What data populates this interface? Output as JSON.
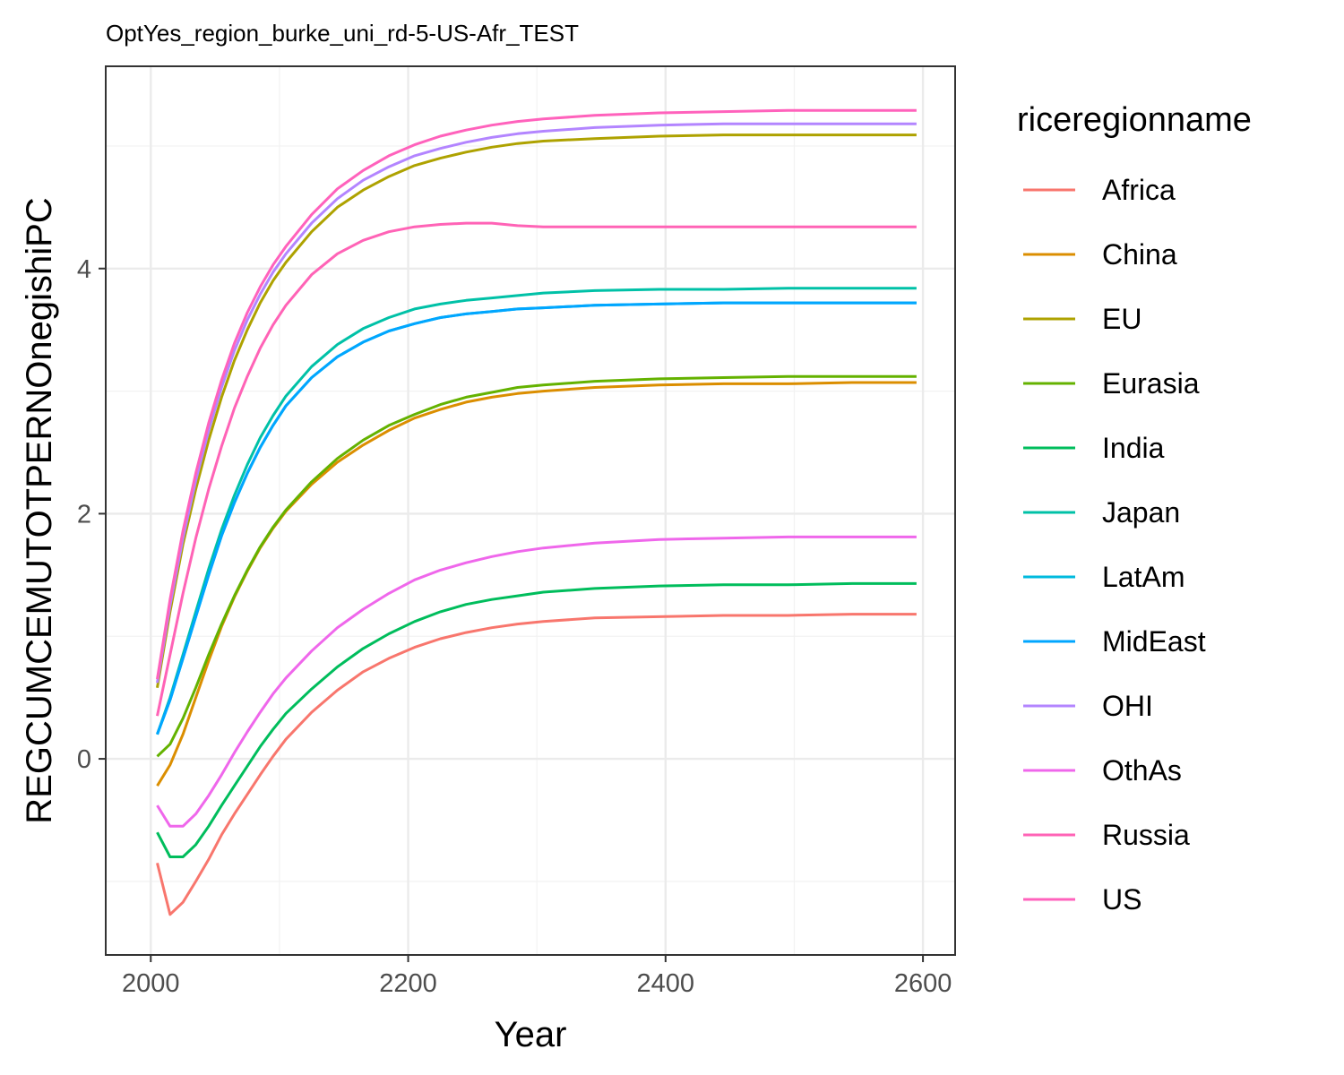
{
  "chart_data": {
    "type": "line",
    "title": "OptYes_region_burke_uni_rd-5-US-Afr_TEST",
    "xlabel": "Year",
    "ylabel": "REGCUMCEMUTOTPERNOnegishiPC",
    "xlim": [
      1965,
      2625
    ],
    "ylim": [
      -1.6,
      5.65
    ],
    "x_ticks": [
      2000,
      2200,
      2400,
      2600
    ],
    "x_tick_labels": [
      "2000",
      "2200",
      "2400",
      "2600"
    ],
    "y_ticks": [
      0,
      2,
      4
    ],
    "y_tick_labels": [
      "0",
      "2",
      "4"
    ],
    "grid": true,
    "legend_title": "riceregionname",
    "legend_position": "right",
    "x": [
      2005,
      2015,
      2025,
      2035,
      2045,
      2055,
      2065,
      2075,
      2085,
      2095,
      2105,
      2125,
      2145,
      2165,
      2185,
      2205,
      2225,
      2245,
      2265,
      2285,
      2305,
      2345,
      2395,
      2445,
      2495,
      2545,
      2595
    ],
    "series": [
      {
        "name": "Africa",
        "color": "#F8766D",
        "values": [
          -0.85,
          -1.27,
          -1.17,
          -1.0,
          -0.82,
          -0.62,
          -0.45,
          -0.29,
          -0.13,
          0.02,
          0.16,
          0.38,
          0.56,
          0.71,
          0.82,
          0.91,
          0.98,
          1.03,
          1.07,
          1.1,
          1.12,
          1.15,
          1.16,
          1.17,
          1.17,
          1.18,
          1.18
        ]
      },
      {
        "name": "China",
        "color": "#DB8E00",
        "values": [
          -0.22,
          -0.05,
          0.2,
          0.5,
          0.8,
          1.08,
          1.32,
          1.53,
          1.72,
          1.88,
          2.02,
          2.24,
          2.42,
          2.56,
          2.68,
          2.78,
          2.85,
          2.91,
          2.95,
          2.98,
          3.0,
          3.03,
          3.05,
          3.06,
          3.06,
          3.07,
          3.07
        ]
      },
      {
        "name": "EU",
        "color": "#AEA200",
        "values": [
          0.58,
          1.2,
          1.75,
          2.2,
          2.6,
          2.95,
          3.25,
          3.5,
          3.72,
          3.9,
          4.05,
          4.3,
          4.5,
          4.64,
          4.75,
          4.84,
          4.9,
          4.95,
          4.99,
          5.02,
          5.04,
          5.06,
          5.08,
          5.09,
          5.09,
          5.09,
          5.09
        ]
      },
      {
        "name": "Eurasia",
        "color": "#64B200",
        "values": [
          0.02,
          0.12,
          0.33,
          0.58,
          0.85,
          1.1,
          1.33,
          1.54,
          1.73,
          1.89,
          2.03,
          2.26,
          2.45,
          2.6,
          2.72,
          2.81,
          2.89,
          2.95,
          2.99,
          3.03,
          3.05,
          3.08,
          3.1,
          3.11,
          3.12,
          3.12,
          3.12
        ]
      },
      {
        "name": "India",
        "color": "#00BD5C",
        "values": [
          -0.6,
          -0.8,
          -0.8,
          -0.7,
          -0.55,
          -0.38,
          -0.22,
          -0.06,
          0.1,
          0.24,
          0.37,
          0.57,
          0.75,
          0.9,
          1.02,
          1.12,
          1.2,
          1.26,
          1.3,
          1.33,
          1.36,
          1.39,
          1.41,
          1.42,
          1.42,
          1.43,
          1.43
        ]
      },
      {
        "name": "Japan",
        "color": "#00C1A7",
        "values": [
          0.2,
          0.5,
          0.85,
          1.2,
          1.55,
          1.87,
          2.15,
          2.4,
          2.62,
          2.8,
          2.96,
          3.2,
          3.38,
          3.51,
          3.6,
          3.67,
          3.71,
          3.74,
          3.76,
          3.78,
          3.8,
          3.82,
          3.83,
          3.83,
          3.84,
          3.84,
          3.84
        ]
      },
      {
        "name": "LatAm",
        "color": "#00BADE",
        "values": [
          0.2,
          0.48,
          0.82,
          1.16,
          1.5,
          1.82,
          2.09,
          2.33,
          2.54,
          2.72,
          2.88,
          3.11,
          3.28,
          3.4,
          3.49,
          3.55,
          3.6,
          3.63,
          3.65,
          3.67,
          3.68,
          3.7,
          3.71,
          3.72,
          3.72,
          3.72,
          3.72
        ]
      },
      {
        "name": "MidEast",
        "color": "#00A6FF",
        "values": [
          0.2,
          0.48,
          0.82,
          1.16,
          1.5,
          1.82,
          2.09,
          2.33,
          2.54,
          2.72,
          2.88,
          3.11,
          3.28,
          3.4,
          3.49,
          3.55,
          3.6,
          3.63,
          3.65,
          3.67,
          3.68,
          3.7,
          3.71,
          3.72,
          3.72,
          3.72,
          3.72
        ]
      },
      {
        "name": "OHI",
        "color": "#B385FF",
        "values": [
          0.62,
          1.25,
          1.8,
          2.27,
          2.68,
          3.03,
          3.33,
          3.58,
          3.79,
          3.97,
          4.12,
          4.37,
          4.57,
          4.72,
          4.83,
          4.92,
          4.98,
          5.03,
          5.07,
          5.1,
          5.12,
          5.15,
          5.17,
          5.18,
          5.18,
          5.18,
          5.18
        ]
      },
      {
        "name": "OthAs",
        "color": "#EF67EB",
        "values": [
          -0.38,
          -0.55,
          -0.55,
          -0.45,
          -0.3,
          -0.13,
          0.05,
          0.22,
          0.38,
          0.53,
          0.66,
          0.88,
          1.07,
          1.22,
          1.35,
          1.46,
          1.54,
          1.6,
          1.65,
          1.69,
          1.72,
          1.76,
          1.79,
          1.8,
          1.81,
          1.81,
          1.81
        ]
      },
      {
        "name": "Russia",
        "color": "#FF63B6",
        "values": [
          0.35,
          0.85,
          1.35,
          1.8,
          2.2,
          2.55,
          2.86,
          3.12,
          3.35,
          3.54,
          3.7,
          3.95,
          4.12,
          4.23,
          4.3,
          4.34,
          4.36,
          4.37,
          4.37,
          4.35,
          4.34,
          4.34,
          4.34,
          4.34,
          4.34,
          4.34,
          4.34
        ]
      },
      {
        "name": "US",
        "color": "#FF62BC",
        "values": [
          0.65,
          1.3,
          1.86,
          2.33,
          2.74,
          3.09,
          3.39,
          3.64,
          3.85,
          4.03,
          4.18,
          4.44,
          4.65,
          4.8,
          4.92,
          5.01,
          5.08,
          5.13,
          5.17,
          5.2,
          5.22,
          5.25,
          5.27,
          5.28,
          5.29,
          5.29,
          5.29
        ]
      }
    ]
  }
}
